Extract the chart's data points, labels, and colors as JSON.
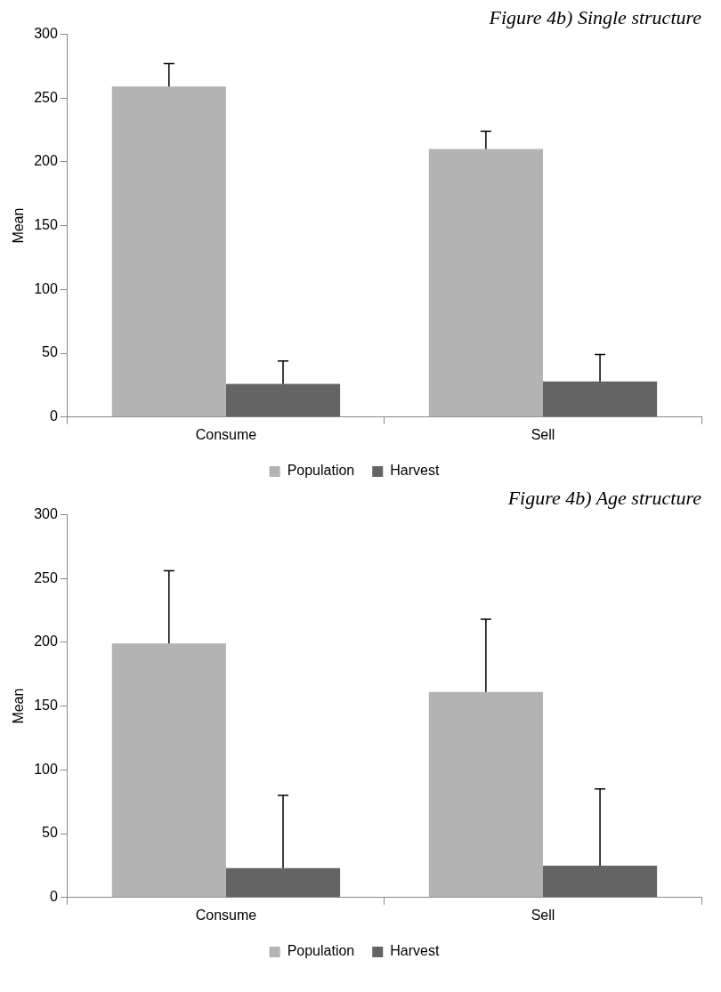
{
  "chart_data": [
    {
      "type": "bar",
      "title": "Figure 4b) Single structure",
      "ylabel": "Mean",
      "categories": [
        "Consume",
        "Sell"
      ],
      "series": [
        {
          "name": "Population",
          "color": "#b3b3b3",
          "values": [
            259,
            210
          ],
          "errors": [
            [
              259,
              277
            ],
            [
              210,
              224
            ]
          ]
        },
        {
          "name": "Harvest",
          "color": "#646464",
          "values": [
            26,
            28
          ],
          "errors": [
            [
              26,
              44
            ],
            [
              28,
              49
            ]
          ]
        }
      ],
      "ylim": [
        0,
        300
      ],
      "yticks": [
        0,
        50,
        100,
        150,
        200,
        250,
        300
      ],
      "grid": false,
      "legend": "bottom"
    },
    {
      "type": "bar",
      "title": "Figure 4b) Age structure",
      "ylabel": "Mean",
      "categories": [
        "Consume",
        "Sell"
      ],
      "series": [
        {
          "name": "Population",
          "color": "#b3b3b3",
          "values": [
            199,
            161
          ],
          "errors": [
            [
              199,
              256
            ],
            [
              161,
              218
            ]
          ]
        },
        {
          "name": "Harvest",
          "color": "#646464",
          "values": [
            23,
            25
          ],
          "errors": [
            [
              23,
              80
            ],
            [
              25,
              85
            ]
          ]
        }
      ],
      "ylim": [
        0,
        300
      ],
      "yticks": [
        0,
        50,
        100,
        150,
        200,
        250,
        300
      ],
      "grid": false,
      "legend": "bottom"
    }
  ]
}
